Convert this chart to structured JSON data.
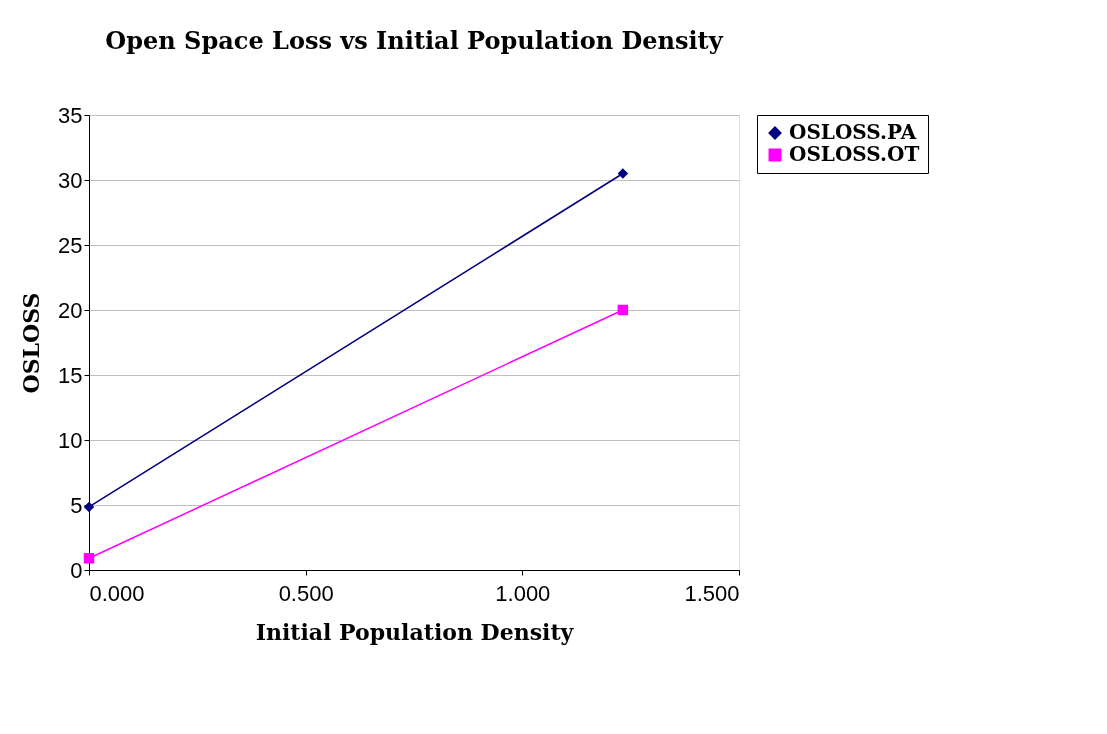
{
  "chart_data": {
    "type": "line",
    "title": "Open Space Loss vs Initial Population Density",
    "xlabel": "Initial Population Density",
    "ylabel": "OSLOSS",
    "x": [
      0,
      1.232
    ],
    "series": [
      {
        "name": "OSLOSS.PA",
        "color": "#000080",
        "values": [
          4.85,
          30.5
        ],
        "marker": "diamond"
      },
      {
        "name": "OSLOSS.OT",
        "color": "#ff00ff",
        "values": [
          0.9,
          20.0
        ],
        "marker": "square"
      }
    ],
    "xlim": [
      0,
      1.5
    ],
    "xticks": [
      {
        "value": 0,
        "label": "0.000"
      },
      {
        "value": 0.5,
        "label": "0.500"
      },
      {
        "value": 1,
        "label": "1.000"
      },
      {
        "value": 1.5,
        "label": "1.500"
      }
    ],
    "ylim": [
      0,
      35
    ],
    "yticks": [
      0,
      5,
      10,
      15,
      20,
      25,
      30,
      35
    ],
    "grid": "y",
    "legend": "right",
    "line_style": "solid"
  }
}
